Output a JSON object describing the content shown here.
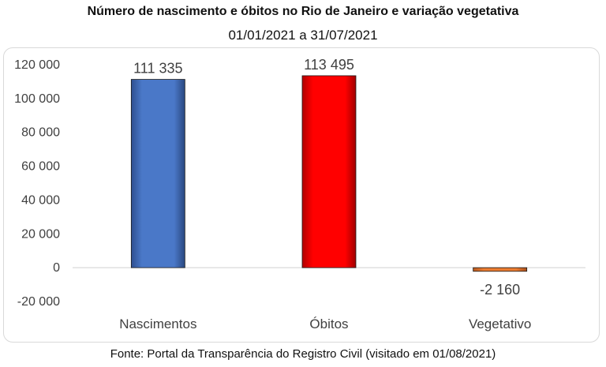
{
  "header": {
    "title": "Número de nascimento e óbitos no Rio de Janeiro e variação vegetativa",
    "subtitle": "01/01/2021 a 31/07/2021"
  },
  "footer": {
    "source": "Fonte: Portal da Transparência do Registro Civil (visitado em 01/08/2021)"
  },
  "chart_data": {
    "type": "bar",
    "title": "Número de nascimento e óbitos no Rio de Janeiro e variação vegetativa",
    "subtitle": "01/01/2021 a 31/07/2021",
    "categories": [
      "Nascimentos",
      "Óbitos",
      "Vegetativo"
    ],
    "values": [
      111335,
      113495,
      -2160
    ],
    "value_labels": [
      "111 335",
      "113 495",
      "-2 160"
    ],
    "bar_colors": [
      "#4472C4",
      "#FF0000",
      "#ED7D31"
    ],
    "ylim": [
      -20000,
      120000
    ],
    "yticks": [
      -20000,
      0,
      20000,
      40000,
      60000,
      80000,
      100000,
      120000
    ],
    "ytick_labels": [
      "-20 000",
      "0",
      "20 000",
      "40 000",
      "60 000",
      "80 000",
      "100 000",
      "120 000"
    ],
    "xlabel": "",
    "ylabel": "",
    "grid": false,
    "legend": "none"
  }
}
